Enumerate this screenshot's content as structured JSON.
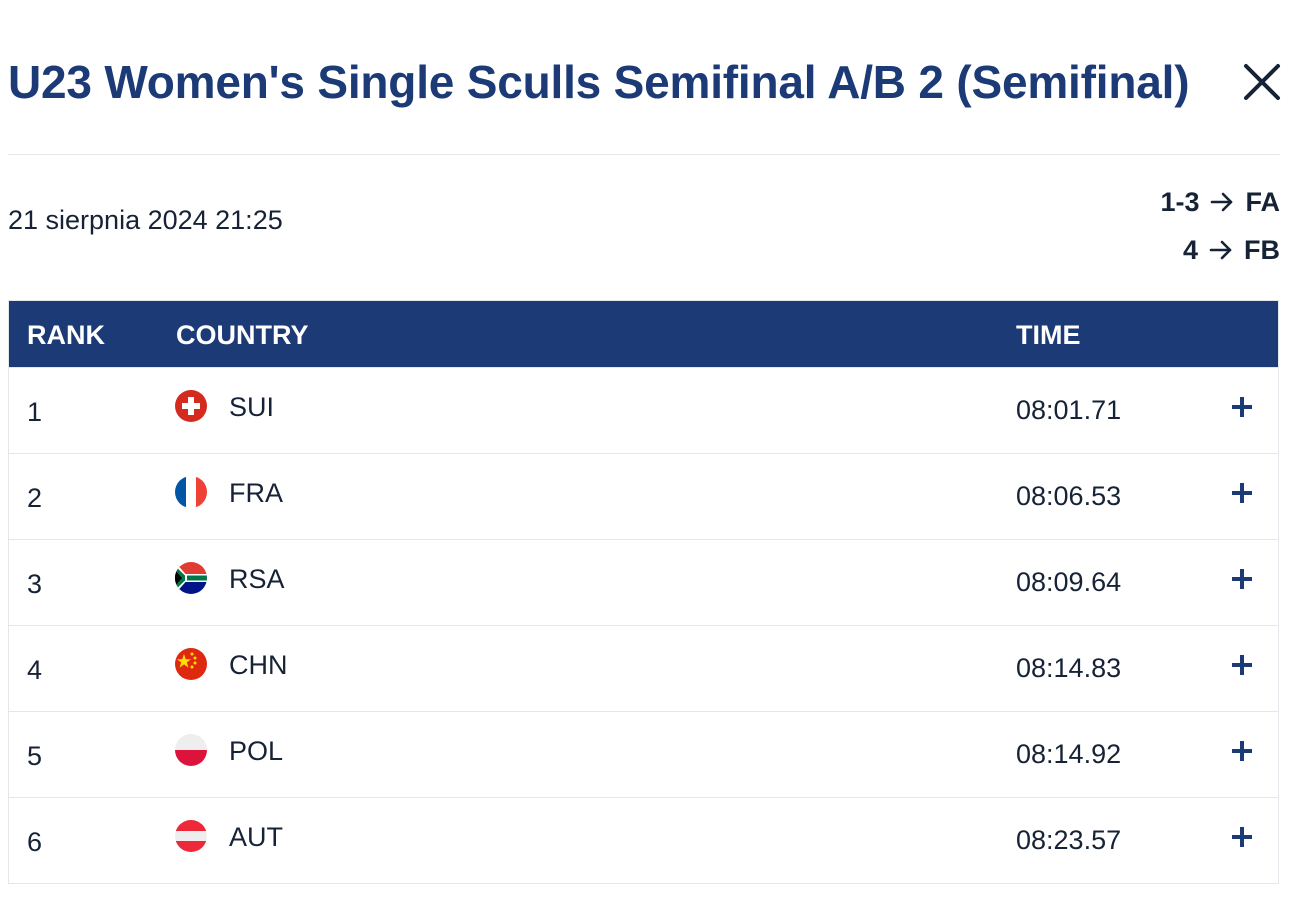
{
  "header": {
    "title": "U23 Women's Single Sculls Semifinal A/B 2 (Semifinal)",
    "close_icon": "close-icon"
  },
  "meta": {
    "date": "21 sierpnia 2024 21:25",
    "progression": [
      {
        "range": "1-3",
        "arrow_icon": "arrow-right-icon",
        "target": "FA"
      },
      {
        "range": "4",
        "arrow_icon": "arrow-right-icon",
        "target": "FB"
      }
    ]
  },
  "table": {
    "columns": {
      "rank": "RANK",
      "country": "COUNTRY",
      "time": "TIME"
    },
    "rows": [
      {
        "rank": "1",
        "country": "SUI",
        "time": "08:01.71",
        "flag_icon": "flag-sui-icon",
        "expand_icon": "plus-icon"
      },
      {
        "rank": "2",
        "country": "FRA",
        "time": "08:06.53",
        "flag_icon": "flag-fra-icon",
        "expand_icon": "plus-icon"
      },
      {
        "rank": "3",
        "country": "RSA",
        "time": "08:09.64",
        "flag_icon": "flag-rsa-icon",
        "expand_icon": "plus-icon"
      },
      {
        "rank": "4",
        "country": "CHN",
        "time": "08:14.83",
        "flag_icon": "flag-chn-icon",
        "expand_icon": "plus-icon"
      },
      {
        "rank": "5",
        "country": "POL",
        "time": "08:14.92",
        "flag_icon": "flag-pol-icon",
        "expand_icon": "plus-icon"
      },
      {
        "rank": "6",
        "country": "AUT",
        "time": "08:23.57",
        "flag_icon": "flag-aut-icon",
        "expand_icon": "plus-icon"
      }
    ]
  },
  "colors": {
    "brand_navy": "#1b3a76",
    "text": "#162235",
    "border": "#e3e6eb"
  }
}
